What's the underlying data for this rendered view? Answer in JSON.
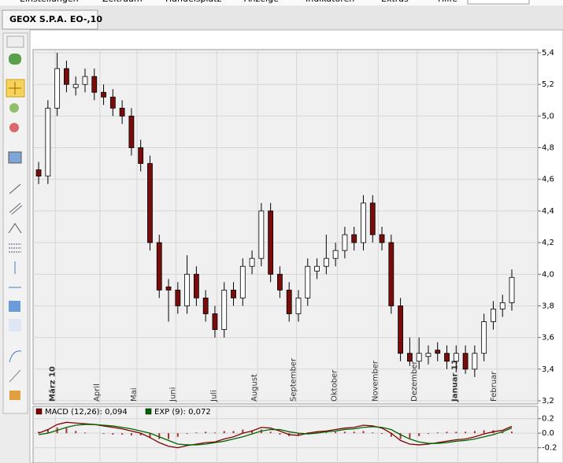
{
  "menu": [
    "Einstellungen",
    "Zeitraum",
    "Handelsplatz",
    "Anzeige",
    "Indikatoren",
    "Extras",
    "Hilfe"
  ],
  "tab": "GEOX S.P.A. EO-,10",
  "chart_data": [
    {
      "type": "candlestick",
      "x": [
        3,
        8,
        13,
        18,
        23,
        28,
        33,
        38,
        43,
        48,
        53,
        58,
        63,
        68,
        73,
        78,
        83,
        88,
        93,
        98,
        103,
        108,
        113,
        118,
        123,
        128,
        133,
        138,
        143,
        148,
        153,
        158,
        163,
        168,
        173,
        178,
        183,
        188,
        193,
        198,
        203,
        208,
        213,
        218,
        223,
        228,
        233,
        238,
        243,
        248,
        253,
        258
      ],
      "open": [
        4.66,
        4.62,
        5.05,
        5.3,
        5.18,
        5.2,
        5.25,
        5.15,
        5.12,
        5.05,
        5.0,
        4.8,
        4.7,
        4.2,
        3.92,
        3.9,
        3.8,
        4.0,
        3.85,
        3.75,
        3.65,
        3.9,
        3.85,
        4.05,
        4.1,
        4.4,
        4.0,
        3.9,
        3.75,
        3.85,
        4.02,
        4.05,
        4.1,
        4.15,
        4.25,
        4.2,
        4.45,
        4.25,
        4.2,
        3.8,
        3.5,
        3.45,
        3.48,
        3.52,
        3.5,
        3.45,
        3.5,
        3.4,
        3.5,
        3.7,
        3.78,
        3.82
      ],
      "high": [
        4.71,
        5.1,
        5.4,
        5.35,
        5.25,
        5.3,
        5.3,
        5.2,
        5.17,
        5.1,
        5.05,
        4.85,
        4.75,
        4.25,
        3.97,
        3.95,
        4.12,
        4.05,
        3.9,
        3.8,
        3.95,
        3.95,
        4.1,
        4.15,
        4.45,
        4.45,
        4.05,
        3.95,
        3.9,
        4.1,
        4.1,
        4.25,
        4.2,
        4.3,
        4.3,
        4.5,
        4.5,
        4.3,
        4.25,
        3.85,
        3.6,
        3.6,
        3.55,
        3.57,
        3.55,
        3.55,
        3.55,
        3.55,
        3.75,
        3.83,
        3.87,
        4.03
      ],
      "low": [
        4.57,
        4.57,
        5.0,
        5.15,
        5.13,
        5.15,
        5.1,
        5.07,
        5.0,
        4.95,
        4.75,
        4.65,
        4.15,
        3.85,
        3.7,
        3.75,
        3.75,
        3.8,
        3.7,
        3.6,
        3.6,
        3.8,
        3.8,
        4.0,
        4.05,
        3.95,
        3.85,
        3.7,
        3.7,
        3.8,
        3.97,
        4.0,
        4.05,
        4.1,
        4.15,
        4.15,
        4.2,
        4.15,
        3.75,
        3.45,
        3.42,
        3.4,
        3.43,
        3.45,
        3.4,
        3.38,
        3.37,
        3.35,
        3.45,
        3.65,
        3.73,
        3.77
      ],
      "close": [
        4.62,
        5.05,
        5.3,
        5.2,
        5.2,
        5.25,
        5.15,
        5.12,
        5.05,
        5.0,
        4.8,
        4.7,
        4.2,
        3.9,
        3.9,
        3.8,
        4.0,
        3.85,
        3.75,
        3.65,
        3.9,
        3.85,
        4.05,
        4.1,
        4.4,
        4.0,
        3.9,
        3.75,
        3.85,
        4.05,
        4.05,
        4.1,
        4.15,
        4.25,
        4.2,
        4.45,
        4.25,
        4.2,
        3.8,
        3.5,
        3.45,
        3.5,
        3.5,
        3.5,
        3.45,
        3.5,
        3.4,
        3.5,
        3.7,
        3.78,
        3.82,
        3.98
      ],
      "up_color": "#ffffff",
      "down_color": "#7a0c0c",
      "xlim": [
        0,
        272
      ],
      "xticks": [
        {
          "value": 12,
          "label": "März 10"
        },
        {
          "value": 36,
          "label": "April"
        },
        {
          "value": 56,
          "label": "Mai"
        },
        {
          "value": 77,
          "label": "Juni"
        },
        {
          "value": 99,
          "label": "Juli"
        },
        {
          "value": 121,
          "label": "August"
        },
        {
          "value": 142,
          "label": "September"
        },
        {
          "value": 164,
          "label": "Oktober"
        },
        {
          "value": 186,
          "label": "November"
        },
        {
          "value": 207,
          "label": "Dezember"
        },
        {
          "value": 229,
          "label": "Januar 11"
        },
        {
          "value": 250,
          "label": "Februar"
        }
      ],
      "ylim": [
        3.18,
        5.42
      ],
      "yticks": [
        {
          "value": 3.2,
          "label": "3,2"
        },
        {
          "value": 3.4,
          "label": "3,4"
        },
        {
          "value": 3.6,
          "label": "3,6"
        },
        {
          "value": 3.8,
          "label": "3,8"
        },
        {
          "value": 4.0,
          "label": "4,0"
        },
        {
          "value": 4.2,
          "label": "4,2"
        },
        {
          "value": 4.4,
          "label": "4,4"
        },
        {
          "value": 4.6,
          "label": "4,6"
        },
        {
          "value": 4.8,
          "label": "4,8"
        },
        {
          "value": 5.0,
          "label": "5,0"
        },
        {
          "value": 5.2,
          "label": "5,2"
        },
        {
          "value": 5.4,
          "label": "5,4"
        }
      ],
      "grid": true
    },
    {
      "type": "line",
      "series": [
        {
          "name": "MACD (12,26): 0,094",
          "color": "#800000",
          "values": [
            0.0,
            0.05,
            0.12,
            0.15,
            0.14,
            0.13,
            0.12,
            0.1,
            0.08,
            0.06,
            0.03,
            0.0,
            -0.06,
            -0.13,
            -0.18,
            -0.2,
            -0.17,
            -0.15,
            -0.13,
            -0.12,
            -0.08,
            -0.05,
            0.0,
            0.03,
            0.08,
            0.07,
            0.03,
            -0.02,
            -0.03,
            0.0,
            0.02,
            0.03,
            0.05,
            0.07,
            0.08,
            0.11,
            0.1,
            0.07,
            0.0,
            -0.1,
            -0.15,
            -0.16,
            -0.15,
            -0.13,
            -0.11,
            -0.09,
            -0.08,
            -0.05,
            -0.01,
            0.02,
            0.04,
            0.094
          ]
        },
        {
          "name": "EXP (9): 0,072",
          "color": "#006400",
          "values": [
            -0.02,
            0.0,
            0.04,
            0.08,
            0.11,
            0.12,
            0.12,
            0.11,
            0.1,
            0.08,
            0.06,
            0.03,
            0.0,
            -0.05,
            -0.1,
            -0.15,
            -0.16,
            -0.16,
            -0.15,
            -0.13,
            -0.11,
            -0.08,
            -0.05,
            -0.01,
            0.03,
            0.05,
            0.05,
            0.02,
            0.0,
            -0.01,
            0.0,
            0.02,
            0.03,
            0.05,
            0.06,
            0.08,
            0.09,
            0.08,
            0.05,
            -0.02,
            -0.08,
            -0.12,
            -0.14,
            -0.14,
            -0.13,
            -0.11,
            -0.1,
            -0.08,
            -0.05,
            -0.02,
            0.02,
            0.072
          ]
        }
      ],
      "histogram": {
        "color": "#a83232",
        "values": [
          0.02,
          0.05,
          0.08,
          0.07,
          0.03,
          0.01,
          0,
          -0.01,
          -0.02,
          -0.02,
          -0.03,
          -0.03,
          -0.06,
          -0.08,
          -0.08,
          -0.05,
          -0.01,
          0.01,
          0.02,
          0.01,
          0.03,
          0.03,
          0.05,
          0.04,
          0.05,
          0.02,
          -0.02,
          -0.04,
          -0.03,
          0.01,
          0.02,
          0.01,
          0.02,
          0.02,
          0.02,
          0.03,
          0.01,
          -0.01,
          -0.05,
          -0.08,
          -0.07,
          -0.04,
          -0.01,
          0.01,
          0.02,
          0.02,
          0.02,
          0.03,
          0.04,
          0.04,
          0.02,
          0.022
        ]
      },
      "ylim": [
        -0.41,
        0.37
      ],
      "yticks": [
        0.2,
        {
          "value": 0,
          "label": "0.0"
        },
        -0.2
      ],
      "grid": true
    }
  ]
}
